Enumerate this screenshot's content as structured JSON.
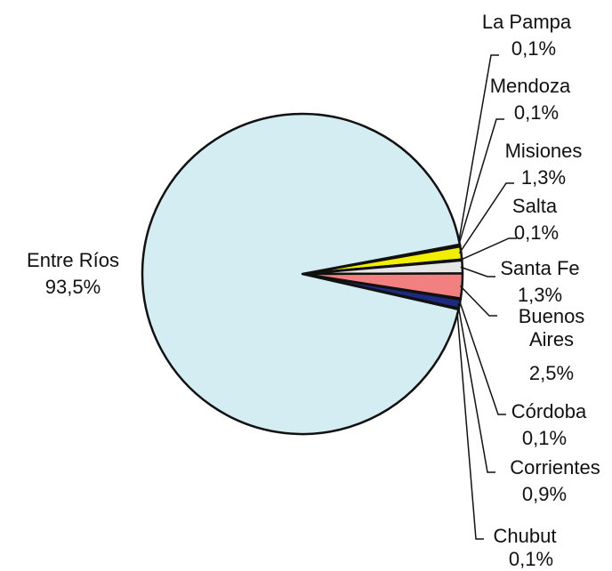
{
  "chart_data": {
    "type": "pie",
    "categories": [
      "La Pampa",
      "Mendoza",
      "Misiones",
      "Salta",
      "Santa Fe",
      "Buenos Aires",
      "Córdoba",
      "Corrientes",
      "Chubut",
      "Entre Ríos"
    ],
    "values": [
      0.1,
      0.1,
      1.3,
      0.1,
      1.3,
      2.5,
      0.1,
      0.9,
      0.1,
      93.5
    ],
    "value_labels": [
      "0,1%",
      "0,1%",
      "1,3%",
      "0,1%",
      "1,3%",
      "2,5%",
      "0,1%",
      "0,9%",
      "0,1%",
      "93,5%"
    ],
    "colors": [
      "#ffffff",
      "#ffffff",
      "#f2ee00",
      "#ffffff",
      "#e6e6e6",
      "#f28080",
      "#ffffff",
      "#1c2a80",
      "#ffffff",
      "#d3edf3"
    ]
  }
}
